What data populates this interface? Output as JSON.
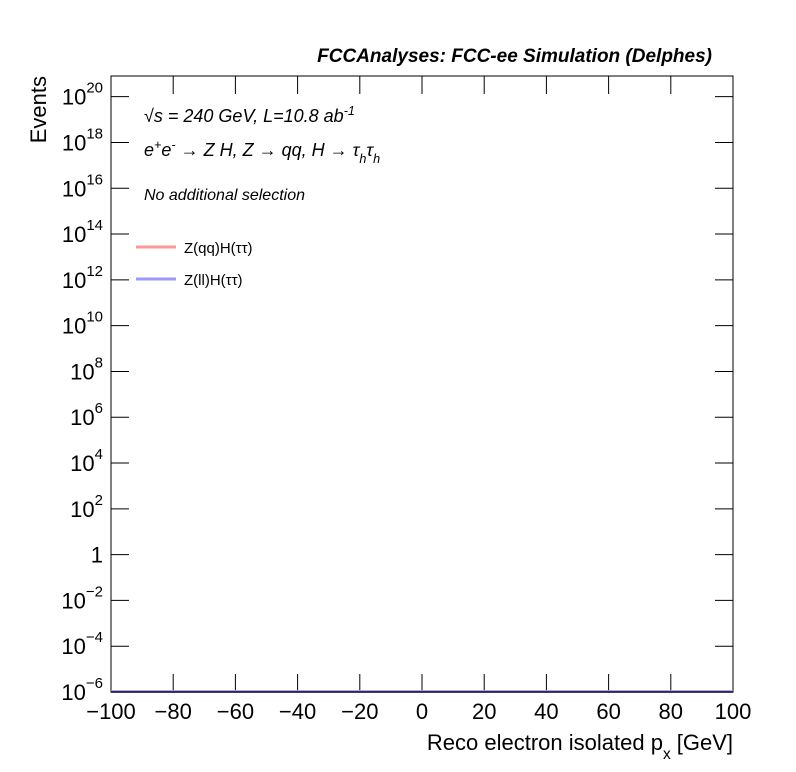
{
  "chart_data": {
    "type": "line",
    "title": "FCCAnalyses: FCC-ee Simulation (Delphes)",
    "annotations": [
      {
        "parts": [
          {
            "text": "√s = 240 GeV, L=10.8 ab"
          },
          {
            "text": "-1",
            "shift": "super"
          }
        ]
      },
      {
        "parts": [
          {
            "text": "e"
          },
          {
            "text": "+",
            "shift": "super"
          },
          {
            "text": "e"
          },
          {
            "text": "-",
            "shift": "super"
          },
          {
            "text": " → Z H, Z  → qq, H  → τ"
          },
          {
            "text": "h",
            "shift": "sub"
          },
          {
            "text": "τ"
          },
          {
            "text": "h",
            "shift": "sub"
          }
        ]
      },
      {
        "parts": [
          {
            "text": "No additional selection"
          }
        ]
      }
    ],
    "x_label": {
      "parts": [
        {
          "text": "Reco electron isolated p"
        },
        {
          "text": "x",
          "shift": "sub"
        },
        {
          "text": " [GeV]"
        }
      ]
    },
    "y_label": "Events",
    "series": [
      {
        "name": "Z(qq)H(ττ)",
        "color": "#ff9999"
      },
      {
        "name": "Z(ll)H(ττ)",
        "color": "#9999ff"
      }
    ],
    "xlim": [
      -100,
      100
    ],
    "xticks": [
      {
        "value": -100,
        "label": "−100"
      },
      {
        "value": -80,
        "label": "−80"
      },
      {
        "value": -60,
        "label": "−60"
      },
      {
        "value": -40,
        "label": "−40"
      },
      {
        "value": -20,
        "label": "−20"
      },
      0,
      20,
      40,
      60,
      80,
      100
    ],
    "ylim": [
      1e-06,
      8e+20
    ],
    "y_log_scale": true,
    "yticks": [
      {
        "value": 1e-06,
        "label": "10",
        "exponent": "−6"
      },
      {
        "value": 0.0001,
        "label": "10",
        "exponent": "−4"
      },
      {
        "value": 0.01,
        "label": "10",
        "exponent": "−2"
      },
      1,
      {
        "value": 100.0,
        "label": "10",
        "exponent": "2"
      },
      {
        "value": 10000.0,
        "label": "10",
        "exponent": "4"
      },
      {
        "value": 1000000.0,
        "label": "10",
        "exponent": "6"
      },
      {
        "value": 100000000.0,
        "label": "10",
        "exponent": "8"
      },
      {
        "value": 10000000000.0,
        "label": "10",
        "exponent": "10"
      },
      {
        "value": 1000000000000.0,
        "label": "10",
        "exponent": "12"
      },
      {
        "value": 100000000000000.0,
        "label": "10",
        "exponent": "14"
      },
      {
        "value": 1e+16,
        "label": "10",
        "exponent": "16"
      },
      {
        "value": 1e+18,
        "label": "10",
        "exponent": "18"
      },
      {
        "value": 1e+20,
        "label": "10",
        "exponent": "20"
      }
    ],
    "legend_position": "upper-left"
  }
}
